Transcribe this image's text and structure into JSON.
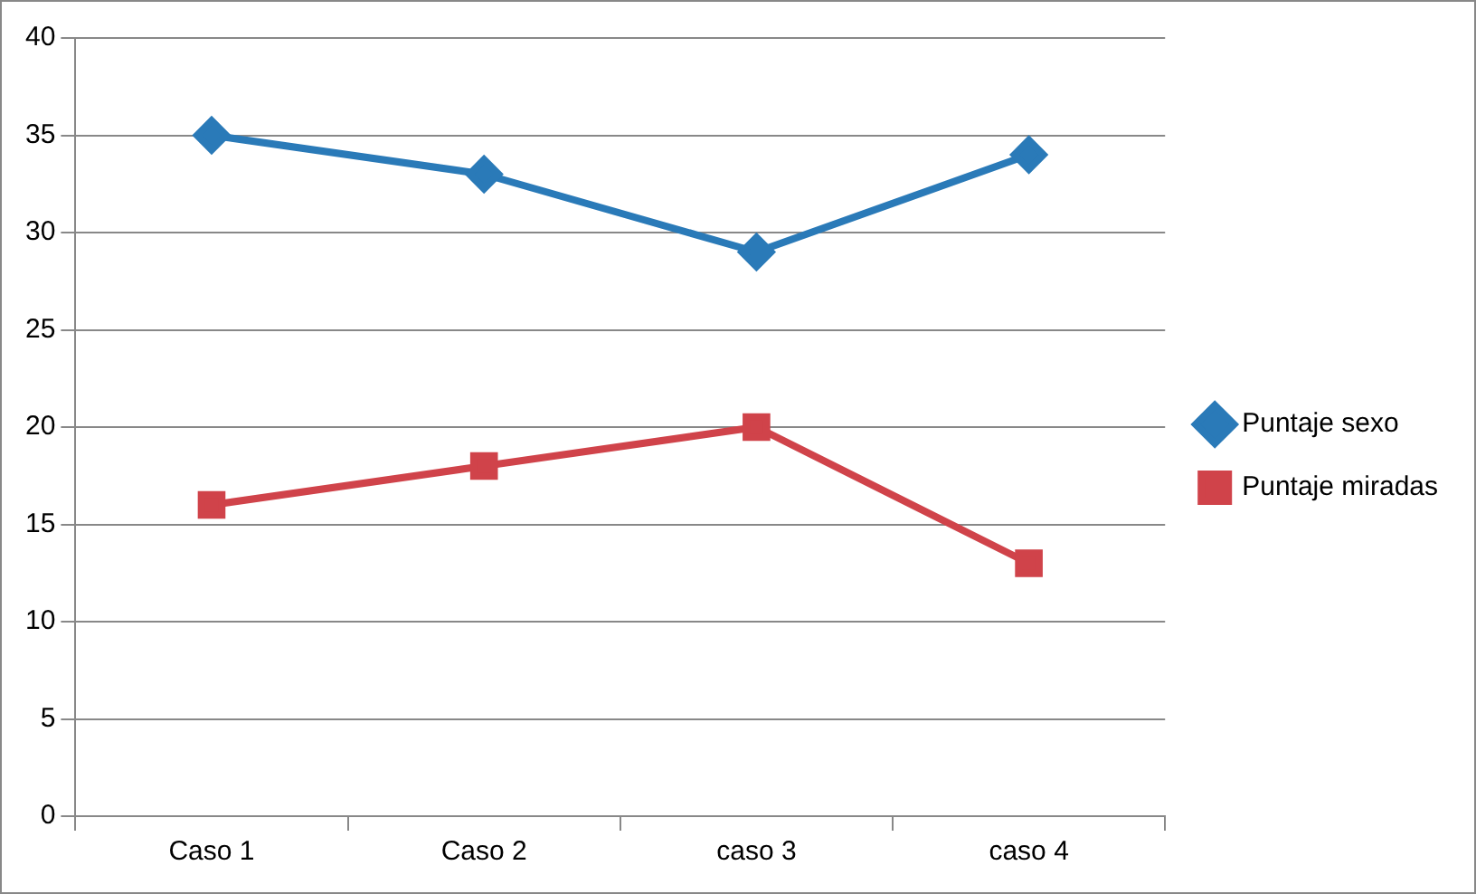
{
  "chart_data": {
    "type": "line",
    "categories": [
      "Caso 1",
      "Caso 2",
      "caso 3",
      "caso 4"
    ],
    "series": [
      {
        "name": "Puntaje sexo",
        "color": "#2a7ab8",
        "marker": "diamond",
        "values": [
          35,
          33,
          29,
          34
        ]
      },
      {
        "name": "Puntaje miradas",
        "color": "#d0434a",
        "marker": "square",
        "values": [
          16,
          18,
          20,
          13
        ]
      }
    ],
    "ylim": [
      0,
      40
    ],
    "yticks": [
      0,
      5,
      10,
      15,
      20,
      25,
      30,
      35,
      40
    ],
    "grid": "y",
    "legend": "right"
  }
}
